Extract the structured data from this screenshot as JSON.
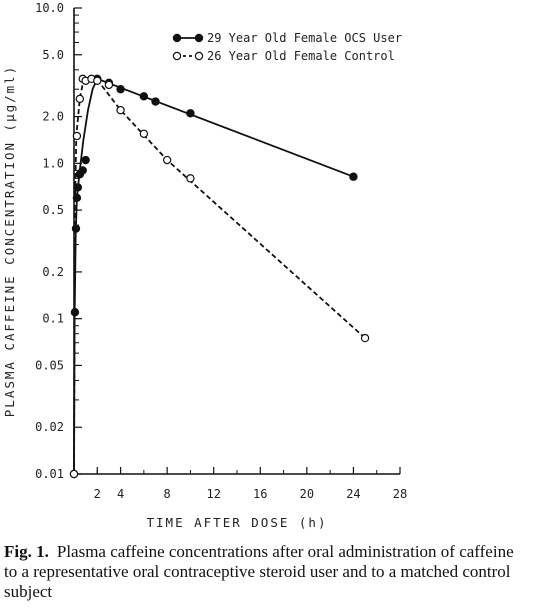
{
  "chart_data": {
    "type": "scatter",
    "xlabel": "TIME AFTER DOSE (h)",
    "ylabel": "PLASMA CAFFEINE CONCENTRATION (μg/ml)",
    "y_scale": "log",
    "xlim": [
      0,
      28
    ],
    "ylim": [
      0.01,
      10
    ],
    "x_ticks": [
      "2",
      "4",
      "8",
      "12",
      "16",
      "20",
      "24",
      "28"
    ],
    "y_ticks": [
      "0.01",
      "0.02",
      "0.05",
      "0.1",
      "0.2",
      "0.5",
      "1.0",
      "2.0",
      "5.0",
      "10.0"
    ],
    "legend_position": "top-right",
    "series": [
      {
        "name": "29 Year Old Female OCS User",
        "marker": "filled-circle",
        "line": "solid",
        "color": "#111111",
        "points": [
          [
            0,
            0.01
          ],
          [
            0.08,
            0.11
          ],
          [
            0.17,
            0.38
          ],
          [
            0.25,
            0.6
          ],
          [
            0.33,
            0.7
          ],
          [
            0.5,
            0.85
          ],
          [
            0.75,
            0.9
          ],
          [
            1,
            1.05
          ],
          [
            2,
            3.5
          ],
          [
            3,
            3.3
          ],
          [
            4,
            3.0
          ],
          [
            6,
            2.7
          ],
          [
            7,
            2.5
          ],
          [
            10,
            2.1
          ],
          [
            24,
            0.82
          ]
        ],
        "curve": [
          [
            0,
            0.01
          ],
          [
            0.05,
            0.1
          ],
          [
            0.15,
            0.35
          ],
          [
            0.25,
            0.6
          ],
          [
            0.5,
            0.9
          ],
          [
            0.8,
            1.4
          ],
          [
            1.2,
            2.2
          ],
          [
            1.6,
            3.0
          ],
          [
            2,
            3.5
          ],
          [
            24,
            0.82
          ]
        ]
      },
      {
        "name": "26 Year Old Female Control",
        "marker": "open-circle",
        "line": "dashed",
        "color": "#111111",
        "points": [
          [
            0,
            0.01
          ],
          [
            0.25,
            1.5
          ],
          [
            0.5,
            2.6
          ],
          [
            0.75,
            3.5
          ],
          [
            1,
            3.4
          ],
          [
            1.5,
            3.5
          ],
          [
            2,
            3.4
          ],
          [
            3,
            3.2
          ],
          [
            4,
            2.2
          ],
          [
            6,
            1.55
          ],
          [
            8,
            1.05
          ],
          [
            10,
            0.8
          ],
          [
            25,
            0.075
          ]
        ],
        "curve": [
          [
            0,
            0.01
          ],
          [
            0.08,
            0.5
          ],
          [
            0.2,
            1.5
          ],
          [
            0.5,
            2.6
          ],
          [
            0.8,
            3.4
          ],
          [
            1,
            3.5
          ],
          [
            2,
            3.45
          ],
          [
            4,
            2.2
          ],
          [
            8,
            1.05
          ],
          [
            25,
            0.075
          ]
        ]
      }
    ]
  },
  "caption": {
    "label": "Fig. 1.",
    "text": "Plasma caffeine concentrations after oral administration of caffeine to a representative oral contraceptive steroid user and to a matched control subject"
  }
}
